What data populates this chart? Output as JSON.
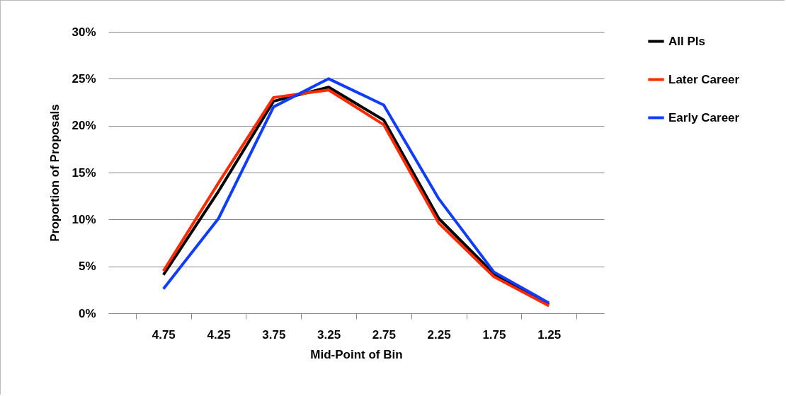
{
  "chart_data": {
    "type": "line",
    "xlabel": "Mid-Point of Bin",
    "ylabel": "Proportion of Proposals",
    "categories": [
      "4.75",
      "4.25",
      "3.75",
      "3.25",
      "2.75",
      "2.25",
      "1.75",
      "1.25"
    ],
    "series": [
      {
        "name": "All PIs",
        "color": "#000000",
        "values": [
          4.1,
          13.0,
          22.6,
          24.1,
          20.6,
          10.1,
          4.2,
          0.9
        ]
      },
      {
        "name": "Later Career",
        "color": "#ff2a00",
        "values": [
          4.5,
          13.9,
          23.0,
          23.8,
          20.1,
          9.6,
          3.9,
          0.8
        ]
      },
      {
        "name": "Early Career",
        "color": "#0f3cff",
        "values": [
          2.6,
          10.1,
          22.0,
          25.0,
          22.2,
          12.2,
          4.4,
          1.1
        ]
      }
    ],
    "ylim": [
      0,
      30
    ],
    "yticks": [
      {
        "value": 0,
        "label": "0%"
      },
      {
        "value": 5,
        "label": "5%"
      },
      {
        "value": 10,
        "label": "10%"
      },
      {
        "value": 15,
        "label": "15%"
      },
      {
        "value": 20,
        "label": "20%"
      },
      {
        "value": 25,
        "label": "25%"
      },
      {
        "value": 30,
        "label": "30%"
      }
    ],
    "grid": "y",
    "legend": "right"
  }
}
